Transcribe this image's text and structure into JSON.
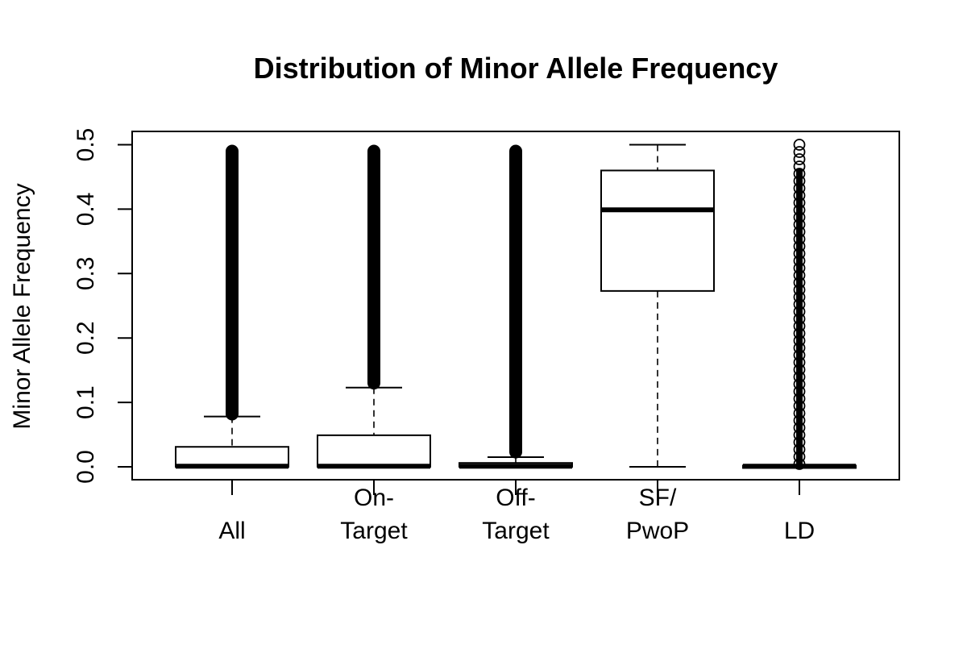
{
  "chart_data": {
    "type": "boxplot",
    "title": "Distribution of Minor Allele Frequency",
    "xlabel": "",
    "ylabel": "Minor Allele Frequency",
    "ylim": [
      0,
      0.5
    ],
    "yticks": [
      "0.0",
      "0.1",
      "0.2",
      "0.3",
      "0.4",
      "0.5"
    ],
    "ytick_values": [
      0,
      0.1,
      0.2,
      0.3,
      0.4,
      0.5
    ],
    "grid": false,
    "categories": [
      {
        "label_lines": [
          "",
          "All"
        ]
      },
      {
        "label_lines": [
          "On-",
          "Target"
        ]
      },
      {
        "label_lines": [
          "Off-",
          "Target"
        ]
      },
      {
        "label_lines": [
          "SF/",
          "PwoP"
        ]
      },
      {
        "label_lines": [
          "",
          "LD"
        ]
      }
    ],
    "boxes": [
      {
        "min": 0.0,
        "q1": 0.0,
        "median": 0.001,
        "q3": 0.031,
        "max": 0.078,
        "outliers_from": 0.072,
        "outliers_to": 0.5
      },
      {
        "min": 0.0,
        "q1": 0.0,
        "median": 0.001,
        "q3": 0.049,
        "max": 0.123,
        "outliers_from": 0.12,
        "outliers_to": 0.5
      },
      {
        "min": 0.0,
        "q1": 0.0,
        "median": 0.001,
        "q3": 0.006,
        "max": 0.015,
        "outliers_from": 0.013,
        "outliers_to": 0.5
      },
      {
        "min": 0.0,
        "q1": 0.273,
        "median": 0.399,
        "q3": 0.46,
        "max": 0.5,
        "outliers_from": null,
        "outliers_to": null
      },
      {
        "min": 0.0,
        "q1": 0.0,
        "median": 0.001,
        "q3": 0.002,
        "max": 0.003,
        "outliers_from": 0.0,
        "outliers_to": 0.5
      }
    ]
  }
}
